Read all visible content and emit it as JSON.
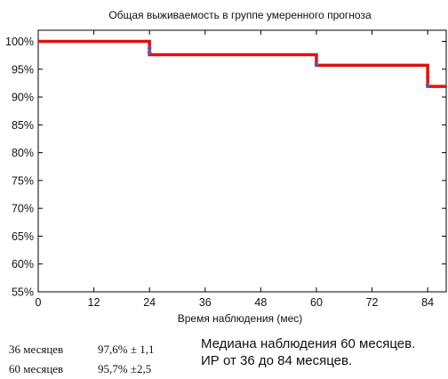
{
  "chart_data": {
    "type": "line",
    "title": "Общая выживаемость в группе умеренного прогноза",
    "xlabel": "Время наблюдения (мес)",
    "ylabel": "",
    "x_ticks": [
      0,
      12,
      24,
      36,
      48,
      60,
      72,
      84
    ],
    "x_tick_labels": [
      "0",
      "12",
      "24",
      "36",
      "48",
      "60",
      "72",
      "84"
    ],
    "y_ticks": [
      55,
      60,
      65,
      70,
      75,
      80,
      85,
      90,
      95,
      100
    ],
    "y_tick_labels": [
      "55%",
      "60%",
      "65%",
      "70%",
      "75%",
      "80%",
      "85%",
      "90%",
      "95%",
      "100%"
    ],
    "xlim": [
      0,
      88
    ],
    "ylim": [
      55,
      102
    ],
    "grid": false,
    "series": [
      {
        "step": true,
        "color": "#e01010",
        "x": [
          0,
          24,
          24,
          60,
          60,
          84,
          84,
          88
        ],
        "y": [
          100,
          100,
          97.6,
          97.6,
          95.7,
          95.7,
          91.9,
          91.9
        ]
      }
    ],
    "censored_marks": [
      {
        "x": 24,
        "y": 98.8
      },
      {
        "x": 24,
        "y": 98.0
      },
      {
        "x": 60,
        "y": 95.9
      },
      {
        "x": 84,
        "y": 92.1
      }
    ],
    "mark_color": "#5a5ab4"
  },
  "stats": [
    {
      "period": "36 месяцев",
      "value": "97,6% ± 1,1"
    },
    {
      "period": "60 месяцев",
      "value": "95,7% ±2,5"
    }
  ],
  "notes": {
    "line1": "Медиана наблюдения 60 месяцев.",
    "line2": "ИР от 36 до 84 месяцев."
  }
}
